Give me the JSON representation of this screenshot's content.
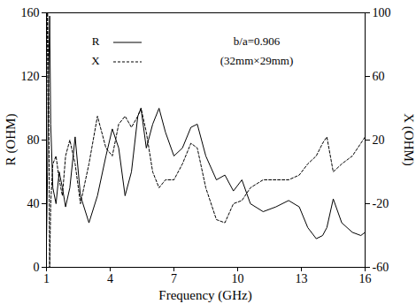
{
  "chart_data": {
    "type": "line",
    "xlabel": "Frequency (GHz)",
    "ylabel": "R (OHM)",
    "y2label": "X (OHM)",
    "annotations": [
      "b/a=0.906",
      "(32mm×29mm)"
    ],
    "x": [
      1.0,
      1.05,
      1.1,
      1.15,
      1.2,
      1.3,
      1.45,
      1.6,
      1.75,
      1.9,
      2.1,
      2.35,
      2.6,
      3.0,
      3.4,
      3.8,
      4.1,
      4.4,
      4.7,
      5.0,
      5.3,
      5.45,
      5.7,
      6.0,
      6.3,
      6.6,
      7.0,
      7.4,
      7.8,
      8.1,
      8.5,
      9.0,
      9.4,
      9.8,
      10.2,
      10.6,
      11.2,
      11.8,
      12.4,
      12.9,
      13.3,
      13.7,
      14.0,
      14.2,
      14.5,
      14.9,
      15.4,
      15.8,
      16.0
    ],
    "series": [
      {
        "name": "R",
        "color": "#000000",
        "line_style": "solid",
        "values": [
          15,
          60,
          120,
          158,
          90,
          50,
          40,
          60,
          50,
          38,
          50,
          82,
          45,
          28,
          45,
          70,
          87,
          75,
          45,
          60,
          95,
          100,
          75,
          90,
          100,
          85,
          70,
          75,
          88,
          90,
          70,
          55,
          58,
          48,
          55,
          40,
          35,
          38,
          42,
          38,
          25,
          18,
          20,
          25,
          43,
          28,
          22,
          20,
          22
        ]
      },
      {
        "name": "X",
        "color": "#000000",
        "line_style": "dashed",
        "axis": "y2",
        "values": [
          20,
          100,
          60,
          -60,
          -20,
          5,
          10,
          -5,
          -15,
          10,
          20,
          5,
          -20,
          5,
          35,
          15,
          10,
          30,
          35,
          28,
          35,
          40,
          25,
          0,
          -10,
          -5,
          -5,
          5,
          18,
          15,
          -10,
          -30,
          -32,
          -20,
          -18,
          -10,
          -5,
          -5,
          -5,
          -2,
          5,
          10,
          18,
          22,
          0,
          5,
          10,
          18,
          22
        ]
      }
    ],
    "xlim": [
      1,
      16
    ],
    "xticks": [
      1,
      4,
      7,
      10,
      13,
      16
    ],
    "ylim": [
      0,
      160
    ],
    "yticks": [
      0,
      40,
      80,
      120,
      160
    ],
    "y2lim": [
      -60,
      100
    ],
    "y2ticks": [
      -60,
      -20,
      20,
      60,
      100
    ],
    "legend": "top-left",
    "grid": false
  }
}
